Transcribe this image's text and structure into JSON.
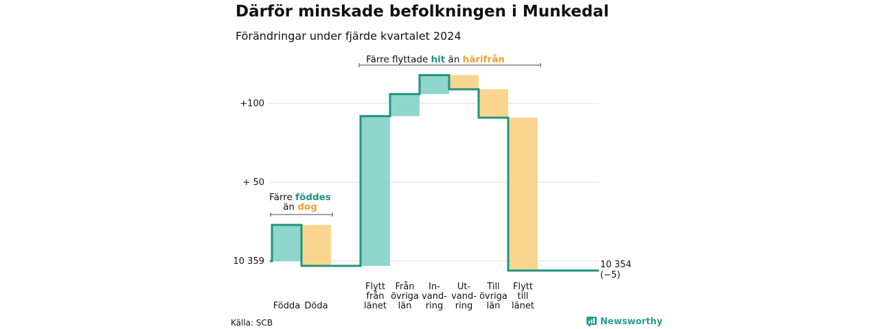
{
  "title": "Därför minskade befolkningen i Munkedal",
  "subtitle": "Förändringar under fjärde kvartalet 2024",
  "source": "Källa: SCB",
  "brand": "Newsworthy",
  "colors": {
    "increase": "#8fd6cc",
    "decrease": "#fad58f",
    "line": "#1f9480",
    "accent_orange": "#f2a02d"
  },
  "annotations": {
    "births": {
      "line1_prefix": "Färre ",
      "line1_highlight": "föddes",
      "line2_prefix": "än ",
      "line2_highlight": "dog"
    },
    "moves": {
      "prefix": "Färre flyttade ",
      "highlight1": "hit",
      "middle": " än ",
      "highlight2": "härifrån"
    }
  },
  "chart_data": {
    "type": "waterfall",
    "start_value": 10359,
    "end_label_line1": "10 354",
    "end_label_line2": "(−5)",
    "y_ticks": [
      {
        "value": 0,
        "label": "10 359"
      },
      {
        "value": 50,
        "label": "+ 50"
      },
      {
        "value": 100,
        "label": "+100"
      }
    ],
    "categories": [
      [
        "Födda"
      ],
      [
        "Döda"
      ],
      [
        "Flytt",
        "från",
        "länet"
      ],
      [
        "Från",
        "övriga",
        "län"
      ],
      [
        "In-",
        "vand-",
        "ring"
      ],
      [
        "Ut-",
        "vand-",
        "ring"
      ],
      [
        "Till",
        "övriga",
        "län"
      ],
      [
        "Flytt",
        "till",
        "länet"
      ]
    ],
    "values": [
      23,
      -26,
      95,
      14,
      12,
      -9,
      -18,
      -97
    ],
    "end_value": -5
  }
}
